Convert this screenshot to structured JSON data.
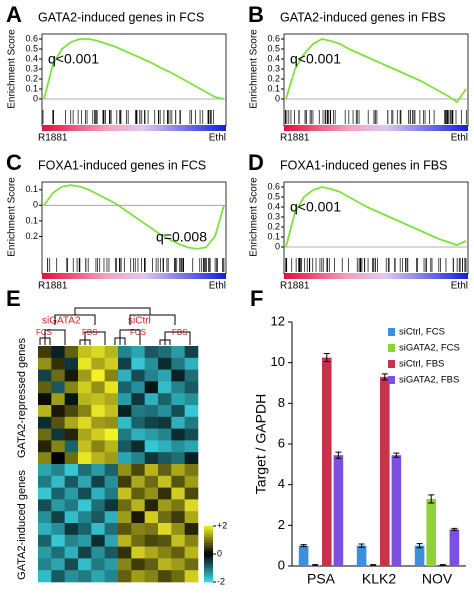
{
  "chart_data": [
    {
      "type": "gsea",
      "panel": "A",
      "title": "GATA2-induced genes in FCS",
      "ylabel": "Enrichment Score",
      "annotation": "q<0.001",
      "left_label": "R1881",
      "right_label": "Ethl",
      "values": [
        0,
        0.35,
        0.5,
        0.57,
        0.6,
        0.6,
        0.58,
        0.55,
        0.52,
        0.48,
        0.44,
        0.4,
        0.36,
        0.31,
        0.27,
        0.22,
        0.17,
        0.12,
        0.07,
        0.02,
        0
      ],
      "color": "#7ee23a",
      "ylim": [
        -0.05,
        0.65
      ],
      "yticks": [
        0,
        0.1,
        0.2,
        0.3,
        0.4,
        0.5,
        0.6
      ]
    },
    {
      "type": "gsea",
      "panel": "B",
      "title": "GATA2-induced genes in FBS",
      "ylabel": "Enrichment Score",
      "annotation": "q<0.001",
      "left_label": "R1881",
      "right_label": "Ethl",
      "values": [
        0,
        0.3,
        0.45,
        0.55,
        0.6,
        0.58,
        0.55,
        0.5,
        0.46,
        0.42,
        0.38,
        0.34,
        0.3,
        0.26,
        0.22,
        0.18,
        0.13,
        0.08,
        0.03,
        -0.03,
        0.1
      ],
      "color": "#7ee23a",
      "ylim": [
        -0.05,
        0.65
      ],
      "yticks": [
        0,
        0.1,
        0.2,
        0.3,
        0.4,
        0.5,
        0.6
      ]
    },
    {
      "type": "gsea",
      "panel": "C",
      "title": "FOXA1-induced genes in FCS",
      "ylabel": "Enrichment Score",
      "annotation": "q=0.008",
      "left_label": "R1881",
      "right_label": "Ethl",
      "values": [
        0,
        0.08,
        0.12,
        0.13,
        0.12,
        0.1,
        0.07,
        0.04,
        0.01,
        -0.03,
        -0.07,
        -0.11,
        -0.15,
        -0.19,
        -0.22,
        -0.25,
        -0.27,
        -0.28,
        -0.27,
        -0.2,
        0
      ],
      "color": "#7ee23a",
      "ylim": [
        -0.3,
        0.15
      ],
      "yticks": [
        {
          "value": -0.2,
          "label": "0.2"
        },
        {
          "value": -0.1,
          "label": "0.1"
        },
        0,
        0.1
      ]
    },
    {
      "type": "gsea",
      "panel": "D",
      "title": "FOXA1-induced genes in FBS",
      "ylabel": "Enrichment Score",
      "annotation": "q<0.001",
      "left_label": "R1881",
      "right_label": "Ethl",
      "values": [
        0,
        0.35,
        0.5,
        0.57,
        0.6,
        0.58,
        0.55,
        0.5,
        0.45,
        0.4,
        0.36,
        0.32,
        0.28,
        0.24,
        0.2,
        0.16,
        0.12,
        0.08,
        0.05,
        0.02,
        0.06
      ],
      "color": "#7ee23a",
      "ylim": [
        -0.05,
        0.65
      ],
      "yticks": [
        0,
        0.1,
        0.2,
        0.3,
        0.4,
        0.5,
        0.6
      ]
    },
    {
      "type": "heatmap",
      "panel": "E",
      "groups": [
        "siGATA2",
        "siCtrl"
      ],
      "conditions": [
        "FCS",
        "FBS",
        "FCS",
        "FBS"
      ],
      "row_groups": [
        "GATA2-repressed genes",
        "GATA2-induced genes"
      ],
      "colorbar_ticks": [
        {
          "value": 2,
          "label": "+2"
        },
        0,
        -2
      ],
      "zlim": [
        -2,
        2
      ],
      "values": [
        [
          0.5,
          -0.3,
          0.8,
          1.6,
          1.8,
          1.5,
          -1.2,
          -1.5,
          -0.8,
          -1.0,
          -1.4,
          -0.6
        ],
        [
          1.2,
          0.4,
          -0.5,
          1.9,
          1.4,
          1.7,
          -0.6,
          -1.8,
          -1.3,
          -0.4,
          -1.1,
          -1.6
        ],
        [
          -0.6,
          0.9,
          0.2,
          1.3,
          2.0,
          1.1,
          -1.6,
          -0.7,
          -1.2,
          -1.5,
          -0.3,
          -1.0
        ],
        [
          0.8,
          -0.8,
          1.1,
          1.7,
          1.2,
          1.9,
          -0.9,
          -1.3,
          -0.2,
          -1.7,
          -1.2,
          -0.8
        ],
        [
          0.1,
          1.3,
          -0.2,
          1.5,
          1.6,
          1.4,
          -1.4,
          -0.5,
          -1.6,
          -0.9,
          -1.5,
          -1.3
        ],
        [
          1.5,
          0.2,
          0.6,
          1.1,
          1.9,
          1.6,
          -0.3,
          -1.1,
          -1.0,
          -1.3,
          -0.7,
          -1.8
        ],
        [
          -0.4,
          0.7,
          1.4,
          1.8,
          1.3,
          1.2,
          -1.7,
          -0.9,
          -0.6,
          -0.5,
          -1.6,
          -1.1
        ],
        [
          0.9,
          -0.5,
          0.3,
          1.4,
          1.7,
          2.0,
          -1.1,
          -1.6,
          -1.4,
          -1.2,
          -0.4,
          -0.7
        ],
        [
          0.3,
          1.1,
          -0.9,
          1.6,
          1.1,
          1.5,
          -0.8,
          -0.4,
          -1.8,
          -1.6,
          -1.3,
          -1.5
        ],
        [
          1.1,
          0.0,
          0.9,
          1.9,
          1.5,
          1.3,
          -1.5,
          -1.2,
          -0.5,
          -0.8,
          -1.0,
          -0.3
        ],
        [
          -1.5,
          -1.2,
          -1.8,
          -1.0,
          -1.4,
          -0.9,
          1.2,
          0.6,
          1.5,
          0.8,
          1.4,
          1.0
        ],
        [
          -1.1,
          -1.7,
          -0.8,
          -1.5,
          -0.6,
          -1.3,
          0.5,
          1.4,
          0.9,
          1.6,
          0.7,
          1.3
        ],
        [
          -1.8,
          -0.9,
          -1.4,
          -0.7,
          -1.6,
          -1.1,
          1.6,
          0.8,
          1.2,
          0.4,
          1.7,
          0.6
        ],
        [
          -0.7,
          -1.4,
          -1.1,
          -1.8,
          -1.0,
          -0.5,
          0.9,
          1.5,
          0.3,
          1.3,
          1.0,
          1.8
        ],
        [
          -1.3,
          -0.6,
          -1.7,
          -1.2,
          -0.8,
          -1.6,
          1.3,
          0.2,
          1.7,
          0.9,
          0.5,
          1.4
        ],
        [
          -1.6,
          -1.3,
          -0.5,
          -0.9,
          -1.7,
          -1.0,
          0.7,
          1.1,
          1.0,
          1.8,
          1.2,
          0.3
        ],
        [
          -0.9,
          -1.8,
          -1.2,
          -1.4,
          -0.4,
          -1.5,
          1.5,
          0.9,
          0.6,
          0.7,
          1.6,
          1.1
        ],
        [
          -1.4,
          -1.0,
          -1.6,
          -0.6,
          -1.3,
          -0.8,
          0.4,
          1.7,
          1.4,
          1.1,
          0.8,
          1.5
        ],
        [
          -1.2,
          -1.5,
          -0.7,
          -1.7,
          -1.1,
          -1.4,
          1.1,
          0.5,
          0.8,
          1.5,
          1.3,
          0.9
        ],
        [
          -1.7,
          -0.8,
          -1.3,
          -1.1,
          -1.5,
          -1.2,
          0.8,
          1.3,
          1.1,
          0.6,
          0.9,
          1.7
        ]
      ]
    },
    {
      "type": "bar",
      "panel": "F",
      "ylabel": "Target / GAPDH",
      "categories": [
        "PSA",
        "KLK2",
        "NOV"
      ],
      "series": [
        {
          "name": "siCtrl, FCS",
          "color": "#3d8fdc",
          "values": [
            1,
            1,
            1
          ],
          "errors": [
            0.05,
            0.08,
            0.1
          ]
        },
        {
          "name": "siGATA2, FCS",
          "color": "#8ed13a",
          "values": [
            0.05,
            0.05,
            3.3
          ],
          "errors": [
            0.02,
            0.02,
            0.2
          ]
        },
        {
          "name": "siCtrl, FBS",
          "color": "#c8324a",
          "values": [
            10.25,
            9.3,
            0.05
          ],
          "errors": [
            0.2,
            0.15,
            0.02
          ]
        },
        {
          "name": "siGATA2, FBS",
          "color": "#7b4fe0",
          "values": [
            5.45,
            5.45,
            1.8
          ],
          "errors": [
            0.15,
            0.1,
            0.05
          ]
        }
      ],
      "ylim": [
        0,
        12
      ],
      "yticks": [
        0,
        2,
        4,
        6,
        8,
        10,
        12
      ],
      "legend": "upper right"
    }
  ]
}
